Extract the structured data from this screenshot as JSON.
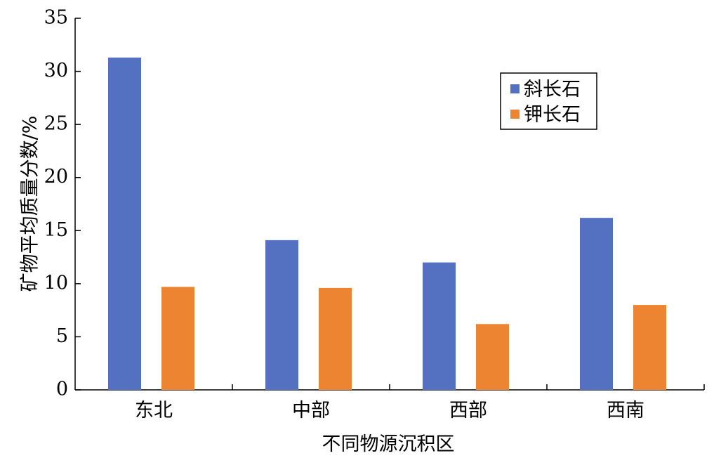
{
  "chart_data": {
    "type": "bar",
    "categories": [
      "东北",
      "中部",
      "西部",
      "西南"
    ],
    "series": [
      {
        "name": "斜长石",
        "values": [
          31.3,
          14.1,
          12.0,
          16.2
        ],
        "color": "#5470c0"
      },
      {
        "name": "钾长石",
        "values": [
          9.7,
          9.6,
          6.2,
          8.0
        ],
        "color": "#ed8431"
      }
    ],
    "xlabel": "不同物源沉积区",
    "ylabel": "矿物平均质量分数/%",
    "ylim": [
      0,
      35
    ],
    "yticks": [
      0,
      5,
      10,
      15,
      20,
      25,
      30,
      35
    ],
    "legend_position": "top-right",
    "grid": false
  }
}
